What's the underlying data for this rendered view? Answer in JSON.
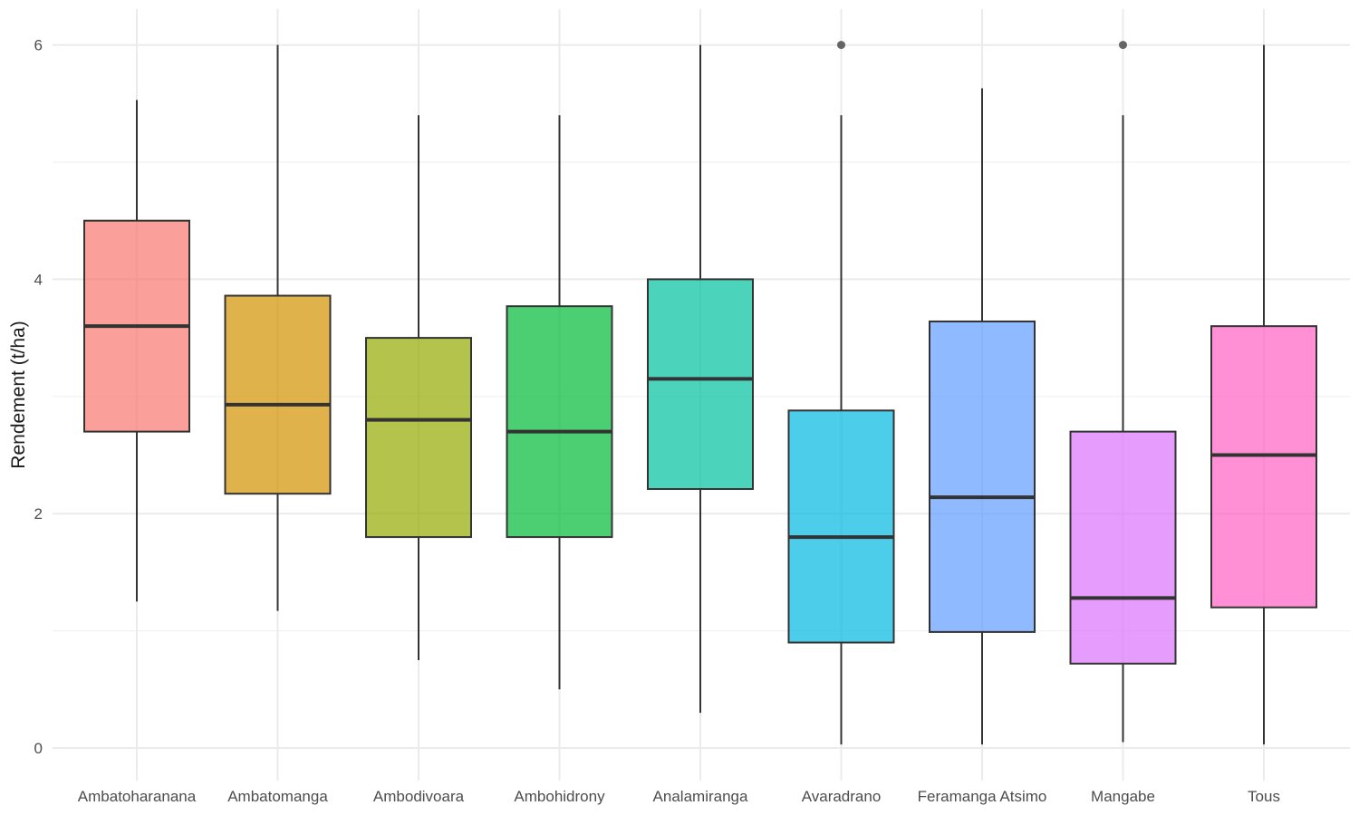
{
  "chart_data": {
    "type": "boxplot",
    "title": "",
    "xlabel": "",
    "ylabel": "Rendement (t/ha)",
    "ylim": [
      -0.2,
      6.3
    ],
    "yticks": [
      0,
      2,
      4,
      6
    ],
    "categories": [
      "Ambatoharanana",
      "Ambatomanga",
      "Ambodivoara",
      "Ambohidrony",
      "Analamiranga",
      "Avaradrano",
      "Feramanga Atsimo",
      "Mangabe",
      "Tous"
    ],
    "boxes": [
      {
        "name": "Ambatoharanana",
        "lower_whisker": 1.25,
        "q1": 2.7,
        "median": 3.6,
        "q3": 4.5,
        "upper_whisker": 5.53,
        "outliers": [],
        "color": "#F8766D"
      },
      {
        "name": "Ambatomanga",
        "lower_whisker": 1.17,
        "q1": 2.17,
        "median": 2.93,
        "q3": 3.86,
        "upper_whisker": 6.0,
        "outliers": [],
        "color": "#D39200"
      },
      {
        "name": "Ambodivoara",
        "lower_whisker": 0.75,
        "q1": 1.8,
        "median": 2.8,
        "q3": 3.5,
        "upper_whisker": 5.4,
        "outliers": [],
        "color": "#93AA00"
      },
      {
        "name": "Ambohidrony",
        "lower_whisker": 0.5,
        "q1": 1.8,
        "median": 2.7,
        "q3": 3.77,
        "upper_whisker": 5.4,
        "outliers": [],
        "color": "#00BA38"
      },
      {
        "name": "Analamiranga",
        "lower_whisker": 0.3,
        "q1": 2.21,
        "median": 3.15,
        "q3": 4.0,
        "upper_whisker": 6.0,
        "outliers": [],
        "color": "#00C19F"
      },
      {
        "name": "Avaradrano",
        "lower_whisker": 0.03,
        "q1": 0.9,
        "median": 1.8,
        "q3": 2.88,
        "upper_whisker": 5.4,
        "outliers": [
          6.0
        ],
        "color": "#00B9E3"
      },
      {
        "name": "Feramanga Atsimo",
        "lower_whisker": 0.03,
        "q1": 0.99,
        "median": 2.14,
        "q3": 3.64,
        "upper_whisker": 5.63,
        "outliers": [],
        "color": "#619CFF"
      },
      {
        "name": "Mangabe",
        "lower_whisker": 0.05,
        "q1": 0.72,
        "median": 1.28,
        "q3": 2.7,
        "upper_whisker": 5.4,
        "outliers": [
          6.0
        ],
        "color": "#DB72FB"
      },
      {
        "name": "Tous",
        "lower_whisker": 0.03,
        "q1": 1.2,
        "median": 2.5,
        "q3": 3.6,
        "upper_whisker": 6.0,
        "outliers": [],
        "color": "#FF61C3"
      }
    ],
    "grid": true,
    "legend": "none"
  }
}
